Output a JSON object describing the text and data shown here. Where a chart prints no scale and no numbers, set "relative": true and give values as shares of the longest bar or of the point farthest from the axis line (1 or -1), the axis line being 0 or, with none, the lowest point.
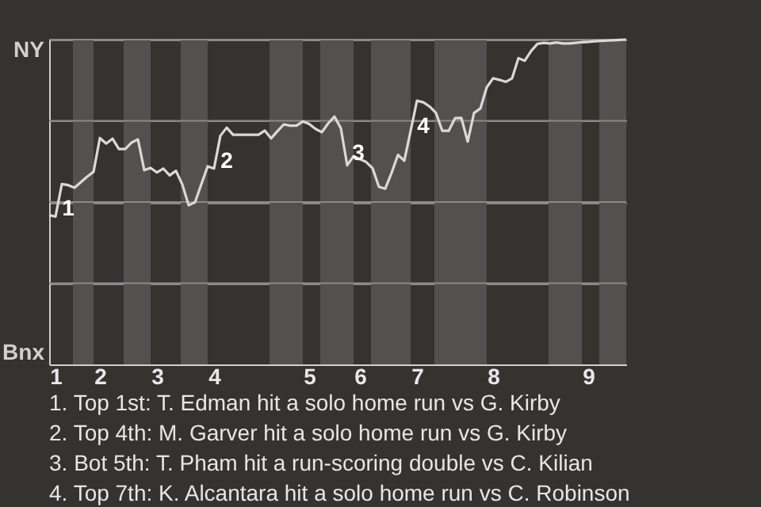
{
  "chart_data": {
    "type": "line",
    "relative": true,
    "categories": [
      null,
      "1",
      null,
      null,
      null,
      null,
      null,
      null,
      "2",
      null,
      null,
      null,
      null,
      null,
      null,
      null,
      null,
      "3",
      null,
      null,
      null,
      null,
      null,
      null,
      null,
      null,
      "4",
      null,
      null,
      null,
      null,
      null,
      null,
      null,
      null,
      null,
      null,
      null,
      null,
      null,
      null,
      "5",
      null,
      null,
      null,
      null,
      null,
      null,
      null,
      "6",
      null,
      null,
      null,
      null,
      null,
      null,
      null,
      null,
      "7",
      null,
      null,
      null,
      null,
      null,
      null,
      null,
      null,
      null,
      null,
      null,
      "8",
      null,
      null,
      null,
      null,
      null,
      null,
      null,
      null,
      null,
      null,
      null,
      null,
      null,
      null,
      "9",
      null,
      null,
      null,
      null,
      null,
      null
    ],
    "series": [
      {
        "color": "#d9d9d9",
        "values": [
          0.46,
          0.455,
          0.555,
          0.552,
          0.544,
          0.561,
          0.578,
          0.593,
          0.697,
          0.68,
          0.695,
          0.663,
          0.663,
          0.683,
          0.693,
          0.598,
          0.605,
          0.591,
          0.603,
          0.582,
          0.596,
          0.554,
          0.49,
          0.499,
          0.555,
          0.61,
          0.603,
          0.704,
          0.729,
          0.707,
          0.707,
          0.707,
          0.707,
          0.707,
          0.72,
          0.696,
          0.718,
          0.739,
          0.735,
          0.735,
          0.748,
          0.74,
          0.725,
          0.715,
          0.742,
          0.763,
          0.727,
          0.613,
          0.641,
          0.632,
          0.623,
          0.604,
          0.547,
          0.541,
          0.59,
          0.645,
          0.627,
          0.719,
          0.812,
          0.807,
          0.794,
          0.774,
          0.719,
          0.719,
          0.758,
          0.759,
          0.686,
          0.774,
          0.788,
          0.853,
          0.881,
          0.876,
          0.87,
          0.881,
          0.943,
          0.935,
          0.965,
          0.987,
          0.99,
          0.988,
          0.991,
          0.988,
          0.988,
          0.99,
          0.992,
          0.993,
          0.995,
          0.996,
          0.997,
          0.998,
          0.999,
          1
        ]
      }
    ],
    "grid": "y",
    "annotations": [
      "NY",
      "Bnx",
      "1",
      "2",
      "3",
      "4",
      "1. Top 1st: T. Edman hit a solo home run vs G. Kirby",
      "2. Top 4th: M. Garver hit a solo home run vs G. Kirby",
      "3. Bot 5th: T. Pham hit a run-scoring double vs C. Kilian",
      "4. Top 7th: K. Alcantara hit a solo home run vs C. Robinson"
    ]
  }
}
